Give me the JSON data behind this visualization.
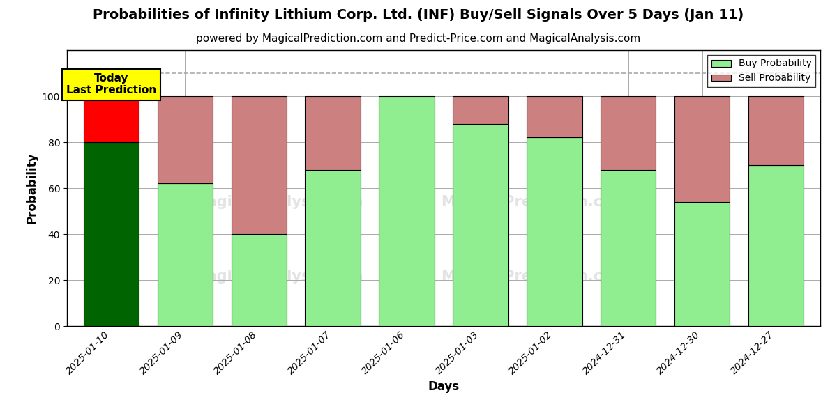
{
  "title": "Probabilities of Infinity Lithium Corp. Ltd. (INF) Buy/Sell Signals Over 5 Days (Jan 11)",
  "subtitle": "powered by MagicalPrediction.com and Predict-Price.com and MagicalAnalysis.com",
  "xlabel": "Days",
  "ylabel": "Probability",
  "categories": [
    "2025-01-10",
    "2025-01-09",
    "2025-01-08",
    "2025-01-07",
    "2025-01-06",
    "2025-01-03",
    "2025-01-02",
    "2024-12-31",
    "2024-12-30",
    "2024-12-27"
  ],
  "buy_values": [
    80,
    62,
    40,
    68,
    100,
    88,
    82,
    68,
    54,
    70
  ],
  "sell_values": [
    20,
    38,
    60,
    32,
    0,
    12,
    18,
    32,
    46,
    30
  ],
  "buy_colors": [
    "#006400",
    "#90EE90",
    "#90EE90",
    "#90EE90",
    "#90EE90",
    "#90EE90",
    "#90EE90",
    "#90EE90",
    "#90EE90",
    "#90EE90"
  ],
  "sell_colors": [
    "#FF0000",
    "#CD8080",
    "#CD8080",
    "#CD8080",
    "#CD8080",
    "#CD8080",
    "#CD8080",
    "#CD8080",
    "#CD8080",
    "#CD8080"
  ],
  "today_box_color": "#FFFF00",
  "today_label_line1": "Today",
  "today_label_line2": "Last Prediction",
  "legend_buy_color": "#90EE90",
  "legend_sell_color": "#CD8080",
  "ylim": [
    0,
    120
  ],
  "yticks": [
    0,
    20,
    40,
    60,
    80,
    100
  ],
  "dashed_line_y": 110,
  "bar_width": 0.75,
  "figsize": [
    12,
    6
  ],
  "dpi": 100,
  "title_fontsize": 14,
  "subtitle_fontsize": 11,
  "axis_label_fontsize": 12,
  "tick_fontsize": 10,
  "background_color": "#ffffff",
  "grid_color": "#aaaaaa",
  "bar_edgecolor": "#000000"
}
